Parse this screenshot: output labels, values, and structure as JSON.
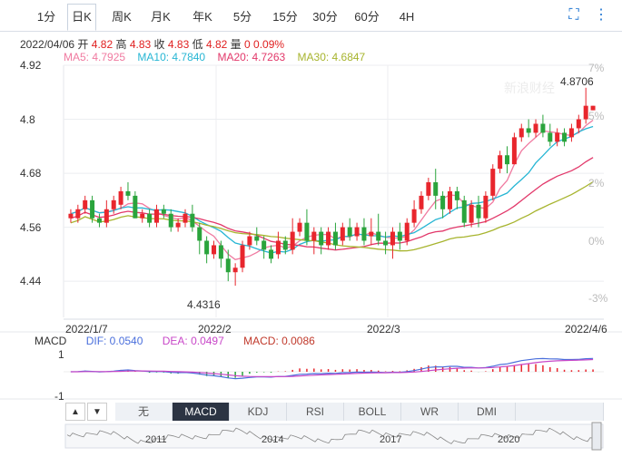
{
  "tabs": [
    "1分",
    "日K",
    "周K",
    "月K",
    "年K",
    "5分",
    "15分",
    "30分",
    "60分",
    "4H"
  ],
  "active_tab": "日K",
  "toolbar": {
    "fullscreen_icon": "fullscreen-icon",
    "more_icon": "more-vertical-icon"
  },
  "quote": {
    "date": "2022/04/06",
    "open_label": "开",
    "open": "4.82",
    "high_label": "高",
    "high": "4.83",
    "close_label": "收",
    "close": "4.83",
    "low_label": "低",
    "low": "4.82",
    "volume_label": "量",
    "volume": "0",
    "change": "0.09%"
  },
  "ma": {
    "ma5": "MA5: 4.7925",
    "ma10": "MA10: 4.7840",
    "ma20": "MA20: 4.7263",
    "ma30": "MA30: 4.6847"
  },
  "y_axis": [
    "4.92",
    "4.8",
    "4.68",
    "4.56",
    "4.44"
  ],
  "pct_axis": [
    "7%",
    "5%",
    "2%",
    "0%",
    "-3%"
  ],
  "x_axis": [
    "2022/1/7",
    "2022/2",
    "2022/3",
    "2022/4/6"
  ],
  "annotations": {
    "max": "4.8706",
    "min": "4.4316"
  },
  "watermark": "新浪财经",
  "macd": {
    "title": "MACD",
    "dif": "DIF: 0.0540",
    "dea": "DEA: 0.0497",
    "macd": "MACD: 0.0086",
    "ticks": [
      "1",
      "-1"
    ]
  },
  "bottom_arrows": [
    "▲",
    "▼"
  ],
  "indicator_tabs": [
    "无",
    "MACD",
    "KDJ",
    "RSI",
    "BOLL",
    "WR",
    "DMI"
  ],
  "active_indicator": "MACD",
  "navigator_years": [
    "2011",
    "2014",
    "2017",
    "2020"
  ],
  "colors": {
    "up": "#e8262d",
    "down": "#2aa43c",
    "ma5": "#f07aa0",
    "ma10": "#27b6d4",
    "ma20": "#e2386a",
    "ma30": "#a7b42e",
    "accent": "#1f75d1"
  },
  "chart_data": {
    "type": "candlestick",
    "ylim": [
      4.4,
      4.92
    ],
    "candles": [
      [
        4.58,
        4.59,
        4.57,
        4.6
      ],
      [
        4.58,
        4.6,
        4.57,
        4.61
      ],
      [
        4.6,
        4.62,
        4.59,
        4.63
      ],
      [
        4.62,
        4.58,
        4.57,
        4.63
      ],
      [
        4.58,
        4.57,
        4.56,
        4.59
      ],
      [
        4.57,
        4.6,
        4.56,
        4.62
      ],
      [
        4.6,
        4.62,
        4.59,
        4.63
      ],
      [
        4.61,
        4.64,
        4.6,
        4.65
      ],
      [
        4.64,
        4.63,
        4.62,
        4.66
      ],
      [
        4.63,
        4.58,
        4.58,
        4.64
      ],
      [
        4.58,
        4.59,
        4.57,
        4.6
      ],
      [
        4.59,
        4.57,
        4.56,
        4.6
      ],
      [
        4.57,
        4.6,
        4.56,
        4.61
      ],
      [
        4.6,
        4.59,
        4.58,
        4.61
      ],
      [
        4.59,
        4.56,
        4.55,
        4.6
      ],
      [
        4.56,
        4.57,
        4.55,
        4.58
      ],
      [
        4.57,
        4.59,
        4.56,
        4.6
      ],
      [
        4.59,
        4.56,
        4.55,
        4.61
      ],
      [
        4.56,
        4.53,
        4.5,
        4.57
      ],
      [
        4.53,
        4.5,
        4.48,
        4.54
      ],
      [
        4.5,
        4.52,
        4.49,
        4.53
      ],
      [
        4.52,
        4.49,
        4.47,
        4.53
      ],
      [
        4.49,
        4.46,
        4.44,
        4.51
      ],
      [
        4.46,
        4.47,
        4.43,
        4.48
      ],
      [
        4.47,
        4.52,
        4.46,
        4.53
      ],
      [
        4.52,
        4.54,
        4.51,
        4.55
      ],
      [
        4.54,
        4.53,
        4.52,
        4.56
      ],
      [
        4.53,
        4.51,
        4.49,
        4.54
      ],
      [
        4.51,
        4.49,
        4.48,
        4.52
      ],
      [
        4.5,
        4.53,
        4.49,
        4.55
      ],
      [
        4.53,
        4.51,
        4.5,
        4.54
      ],
      [
        4.51,
        4.55,
        4.5,
        4.58
      ],
      [
        4.55,
        4.57,
        4.54,
        4.58
      ],
      [
        4.57,
        4.53,
        4.52,
        4.6
      ],
      [
        4.53,
        4.55,
        4.5,
        4.56
      ],
      [
        4.55,
        4.52,
        4.5,
        4.56
      ],
      [
        4.52,
        4.55,
        4.51,
        4.56
      ],
      [
        4.55,
        4.52,
        4.51,
        4.57
      ],
      [
        4.53,
        4.56,
        4.52,
        4.57
      ],
      [
        4.56,
        4.54,
        4.53,
        4.58
      ],
      [
        4.54,
        4.56,
        4.53,
        4.57
      ],
      [
        4.56,
        4.53,
        4.52,
        4.58
      ],
      [
        4.54,
        4.55,
        4.52,
        4.58
      ],
      [
        4.55,
        4.53,
        4.52,
        4.59
      ],
      [
        4.53,
        4.52,
        4.5,
        4.55
      ],
      [
        4.52,
        4.55,
        4.49,
        4.56
      ],
      [
        4.55,
        4.53,
        4.51,
        4.57
      ],
      [
        4.53,
        4.57,
        4.52,
        4.58
      ],
      [
        4.57,
        4.6,
        4.56,
        4.62
      ],
      [
        4.6,
        4.63,
        4.59,
        4.64
      ],
      [
        4.63,
        4.66,
        4.62,
        4.67
      ],
      [
        4.66,
        4.63,
        4.6,
        4.69
      ],
      [
        4.63,
        4.6,
        4.58,
        4.64
      ],
      [
        4.6,
        4.64,
        4.59,
        4.65
      ],
      [
        4.64,
        4.62,
        4.6,
        4.65
      ],
      [
        4.62,
        4.57,
        4.56,
        4.63
      ],
      [
        4.57,
        4.61,
        4.56,
        4.62
      ],
      [
        4.61,
        4.58,
        4.56,
        4.63
      ],
      [
        4.58,
        4.63,
        4.57,
        4.64
      ],
      [
        4.63,
        4.69,
        4.62,
        4.7
      ],
      [
        4.69,
        4.72,
        4.68,
        4.73
      ],
      [
        4.72,
        4.7,
        4.68,
        4.74
      ],
      [
        4.7,
        4.76,
        4.7,
        4.77
      ],
      [
        4.76,
        4.78,
        4.75,
        4.79
      ],
      [
        4.78,
        4.77,
        4.76,
        4.8
      ],
      [
        4.77,
        4.79,
        4.76,
        4.8
      ],
      [
        4.79,
        4.77,
        4.76,
        4.81
      ],
      [
        4.77,
        4.75,
        4.74,
        4.79
      ],
      [
        4.75,
        4.77,
        4.74,
        4.78
      ],
      [
        4.77,
        4.75,
        4.74,
        4.78
      ],
      [
        4.76,
        4.78,
        4.75,
        4.79
      ],
      [
        4.78,
        4.8,
        4.77,
        4.81
      ],
      [
        4.8,
        4.83,
        4.79,
        4.87
      ],
      [
        4.82,
        4.83,
        4.82,
        4.83
      ]
    ]
  }
}
